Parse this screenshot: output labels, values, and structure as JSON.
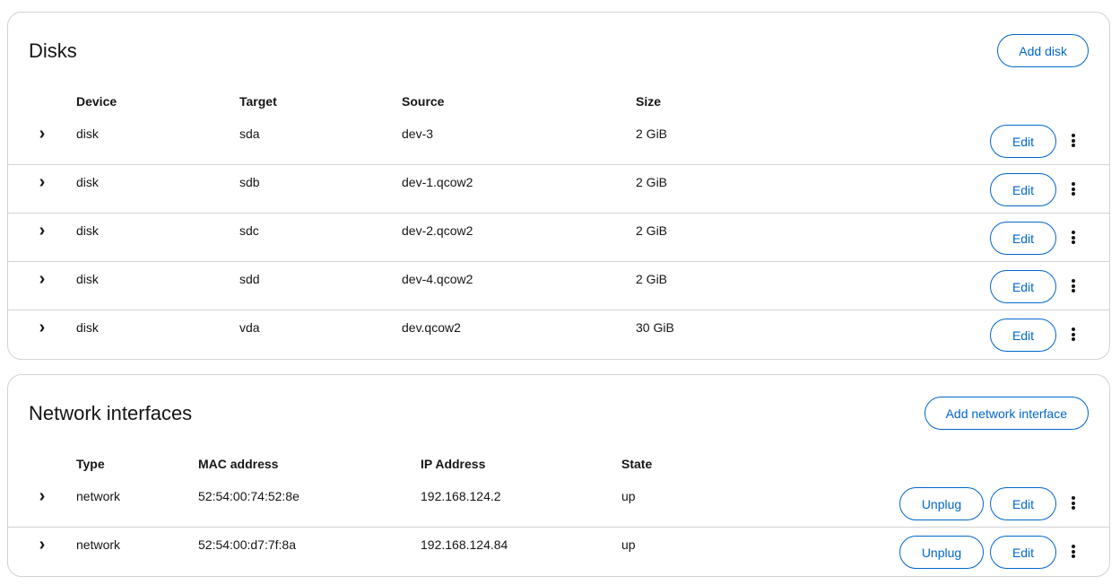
{
  "disks": {
    "title": "Disks",
    "add_label": "Add disk",
    "columns": [
      "Device",
      "Target",
      "Source",
      "Size"
    ],
    "rows": [
      {
        "device": "disk",
        "target": "sda",
        "source": "dev-3",
        "size": "2 GiB"
      },
      {
        "device": "disk",
        "target": "sdb",
        "source": "dev-1.qcow2",
        "size": "2 GiB"
      },
      {
        "device": "disk",
        "target": "sdc",
        "source": "dev-2.qcow2",
        "size": "2 GiB"
      },
      {
        "device": "disk",
        "target": "sdd",
        "source": "dev-4.qcow2",
        "size": "2 GiB"
      },
      {
        "device": "disk",
        "target": "vda",
        "source": "dev.qcow2",
        "size": "30 GiB"
      }
    ],
    "edit_label": "Edit"
  },
  "networks": {
    "title": "Network interfaces",
    "add_label": "Add network interface",
    "columns": [
      "Type",
      "MAC address",
      "IP Address",
      "State"
    ],
    "rows": [
      {
        "type": "network",
        "mac": "52:54:00:74:52:8e",
        "ip": "192.168.124.2",
        "state": "up"
      },
      {
        "type": "network",
        "mac": "52:54:00:d7:7f:8a",
        "ip": "192.168.124.84",
        "state": "up"
      }
    ],
    "unplug_label": "Unplug",
    "edit_label": "Edit"
  },
  "icons": {
    "expand": "chevron-right-icon",
    "kebab": "kebab-menu-icon"
  },
  "colors": {
    "accent": "#0066cc",
    "border": "#d2d2d2"
  }
}
